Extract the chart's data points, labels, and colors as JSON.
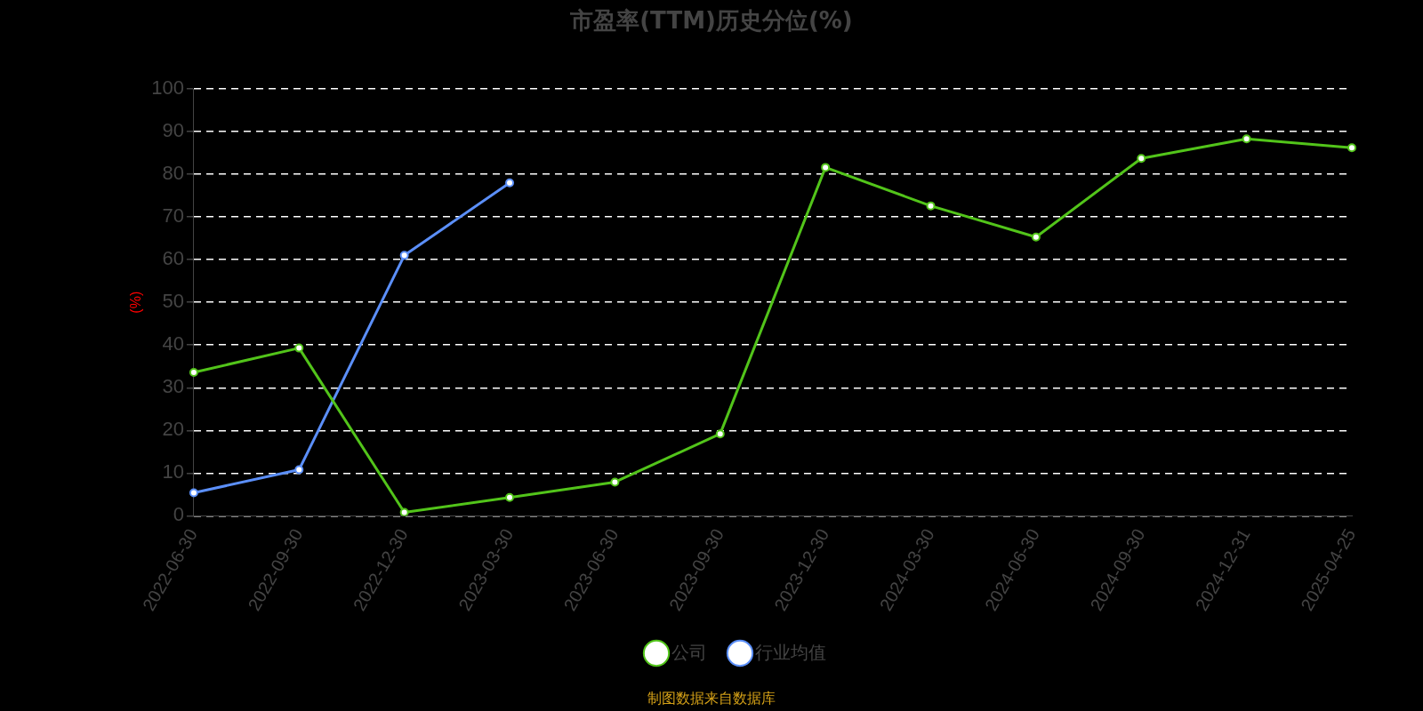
{
  "chart_data": {
    "type": "line",
    "title": "市盈率(TTM)历史分位(%)",
    "ylabel": "(%)",
    "categories": [
      "2022-06-30",
      "2022-09-30",
      "2022-12-30",
      "2023-03-30",
      "2023-06-30",
      "2023-09-30",
      "2023-12-30",
      "2024-03-30",
      "2024-06-30",
      "2024-09-30",
      "2024-12-31",
      "2025-04-25"
    ],
    "series": [
      {
        "name": "公司",
        "color": "#52c41a",
        "values": [
          33.6,
          39.3,
          0.8,
          4.3,
          7.9,
          19.2,
          81.6,
          72.6,
          65.3,
          83.7,
          88.3,
          86.2
        ]
      },
      {
        "name": "行业均值",
        "color": "#5b8ff9",
        "values": [
          5.4,
          10.8,
          61,
          78,
          null,
          null,
          null,
          null,
          null,
          null,
          null,
          null
        ]
      }
    ],
    "ylim": [
      0,
      100
    ],
    "yticks": [
      0,
      10,
      20,
      30,
      40,
      50,
      60,
      70,
      80,
      90,
      100
    ],
    "grid": "y",
    "legend": "bottom",
    "marker": "circle",
    "line_style": "solid",
    "annotations": [
      "制图数据来自数据库"
    ]
  }
}
